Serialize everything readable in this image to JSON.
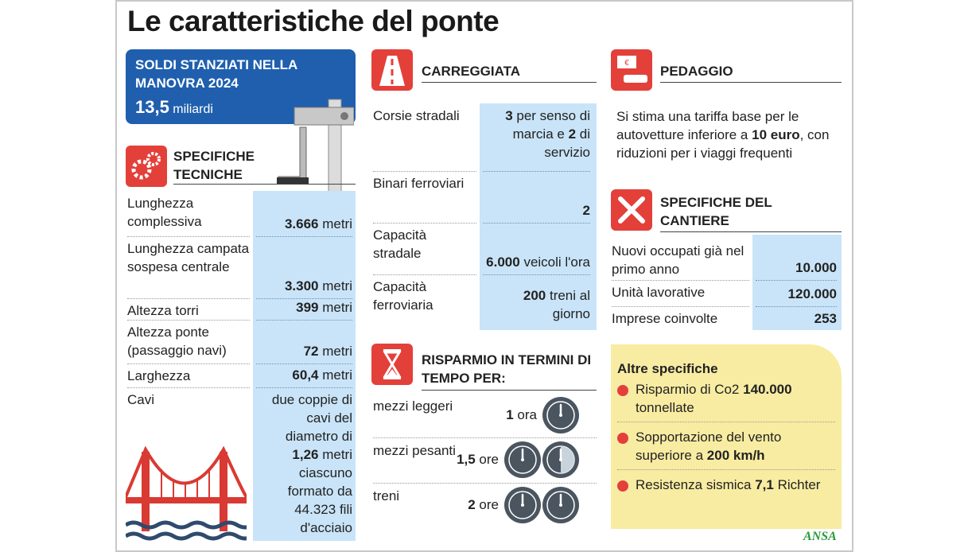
{
  "header": {
    "title": "Le caratteristiche del ponte"
  },
  "funds": {
    "label": "SOLDI STANZIATI NELLA MANOVRA 2024",
    "amount": "13,5",
    "unit": "miliardi"
  },
  "tech_specs": {
    "title": "SPECIFICHE TECNICHE",
    "rows": [
      {
        "label": "Lunghezza complessiva",
        "value": [
          {
            "bold": "3.666"
          },
          {
            "text": " metri"
          }
        ]
      },
      {
        "label": "Lunghezza campata sospesa centrale",
        "value": [
          {
            "bold": "3.300"
          },
          {
            "text": " metri"
          }
        ]
      },
      {
        "label": "Altezza torri",
        "value": [
          {
            "bold": "399"
          },
          {
            "text": " metri"
          }
        ]
      },
      {
        "label": "Altezza ponte (passaggio navi)",
        "value": [
          {
            "bold": "72"
          },
          {
            "text": " metri"
          }
        ]
      },
      {
        "label": "Larghezza",
        "value": [
          {
            "bold": "60,4"
          },
          {
            "text": " metri"
          }
        ]
      },
      {
        "label": "Cavi",
        "value": [
          {
            "text": "due coppie di cavi del diametro di "
          },
          {
            "bold": "1,26"
          },
          {
            "text": " metri ciascuno formato da 44.323 fili d'acciaio"
          }
        ]
      }
    ]
  },
  "carriageway": {
    "title": "CARREGGIATA",
    "rows": [
      {
        "label": "Corsie stradali",
        "value": [
          {
            "bold": "3"
          },
          {
            "text": " per senso di marcia e "
          },
          {
            "bold": "2"
          },
          {
            "text": " di servizio"
          }
        ]
      },
      {
        "label": "Binari ferroviari",
        "value": [
          {
            "bold": "2"
          }
        ]
      },
      {
        "label": "Capacità stradale",
        "value": [
          {
            "bold": "6.000"
          },
          {
            "text": " veicoli l'ora"
          }
        ]
      },
      {
        "label": "Capacità ferroviaria",
        "value": [
          {
            "bold": "200"
          },
          {
            "text": " treni al giorno"
          }
        ]
      }
    ]
  },
  "time_savings": {
    "title": "RISPARMIO IN TERMINI DI TEMPO PER:",
    "rows": [
      {
        "label": "mezzi leggeri",
        "value": [
          {
            "bold": "1"
          },
          {
            "text": " ora"
          }
        ]
      },
      {
        "label": "mezzi pesanti",
        "value": [
          {
            "bold": "1,5"
          },
          {
            "text": " ore"
          }
        ]
      },
      {
        "label": "treni",
        "value": [
          {
            "bold": "2"
          },
          {
            "text": " ore"
          }
        ]
      }
    ]
  },
  "toll": {
    "title": "PEDAGGIO",
    "text": [
      {
        "text": "Si stima una tariffa base per le autovetture inferiore a "
      },
      {
        "bold": "10 euro"
      },
      {
        "text": ", con riduzioni per i viaggi frequenti"
      }
    ]
  },
  "site_specs": {
    "title": "SPECIFICHE DEL CANTIERE",
    "rows": [
      {
        "label": "Nuovi occupati già nel primo anno",
        "value": [
          {
            "bold": "10.000"
          }
        ]
      },
      {
        "label": "Unità lavorative",
        "value": [
          {
            "bold": "120.000"
          }
        ]
      },
      {
        "label": "Imprese coinvolte",
        "value": [
          {
            "bold": "253"
          }
        ]
      }
    ]
  },
  "other_specs": {
    "title": "Altre specifiche",
    "items": [
      [
        {
          "text": "Risparmio di Co2 "
        },
        {
          "bold": "140.000"
        },
        {
          "text": " tonnellate"
        }
      ],
      [
        {
          "text": "Sopportazione del vento superiore a "
        },
        {
          "bold": "200 km/h"
        }
      ],
      [
        {
          "text": "Resistenza sismica "
        },
        {
          "bold": "7,1"
        },
        {
          "text": " Richter"
        }
      ]
    ]
  },
  "footer": {
    "source": "ANSA"
  }
}
